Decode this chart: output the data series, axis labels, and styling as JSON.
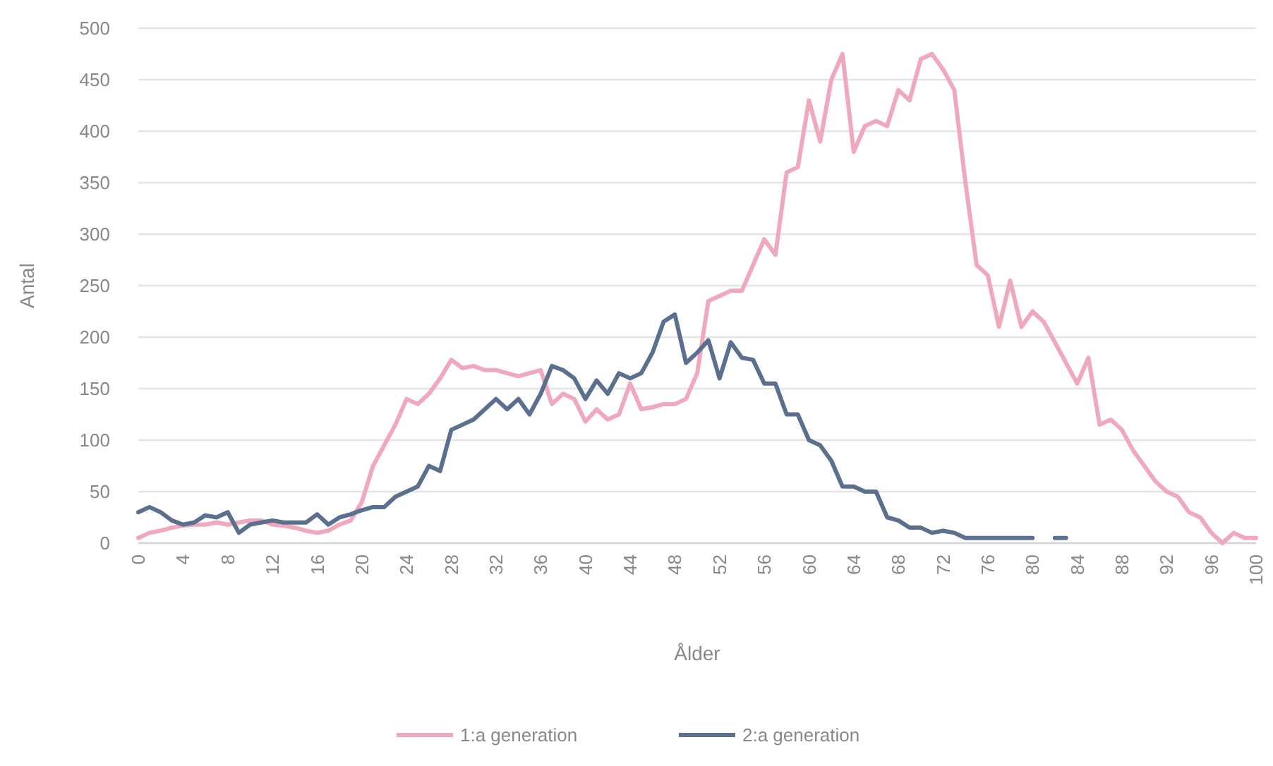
{
  "chart_data": {
    "type": "line",
    "xlabel": "Ålder",
    "ylabel": "Antal",
    "x": [
      0,
      1,
      2,
      3,
      4,
      5,
      6,
      7,
      8,
      9,
      10,
      11,
      12,
      13,
      14,
      15,
      16,
      17,
      18,
      19,
      20,
      21,
      22,
      23,
      24,
      25,
      26,
      27,
      28,
      29,
      30,
      31,
      32,
      33,
      34,
      35,
      36,
      37,
      38,
      39,
      40,
      41,
      42,
      43,
      44,
      45,
      46,
      47,
      48,
      49,
      50,
      51,
      52,
      53,
      54,
      55,
      56,
      57,
      58,
      59,
      60,
      61,
      62,
      63,
      64,
      65,
      66,
      67,
      68,
      69,
      70,
      71,
      72,
      73,
      74,
      75,
      76,
      77,
      78,
      79,
      80,
      81,
      82,
      83,
      84,
      85,
      86,
      87,
      88,
      89,
      90,
      91,
      92,
      93,
      94,
      95,
      96,
      97,
      98,
      99,
      100
    ],
    "xlim": [
      0,
      100
    ],
    "xticks": [
      0,
      4,
      8,
      12,
      16,
      20,
      24,
      28,
      32,
      36,
      40,
      44,
      48,
      52,
      56,
      60,
      64,
      68,
      72,
      76,
      80,
      84,
      88,
      92,
      96,
      100
    ],
    "ylim": [
      0,
      500
    ],
    "yticks": [
      0,
      50,
      100,
      150,
      200,
      250,
      300,
      350,
      400,
      450,
      500
    ],
    "grid": "y",
    "legend": "bottom",
    "line_style": "solid",
    "marker": "none",
    "series": [
      {
        "name": "1:a generation",
        "color": "#f0a8bc",
        "values": [
          5,
          10,
          12,
          15,
          17,
          18,
          18,
          20,
          18,
          20,
          22,
          22,
          18,
          17,
          15,
          12,
          10,
          12,
          18,
          22,
          40,
          75,
          95,
          115,
          140,
          135,
          145,
          160,
          178,
          170,
          172,
          168,
          168,
          165,
          162,
          165,
          168,
          135,
          145,
          140,
          118,
          130,
          120,
          125,
          155,
          130,
          132,
          135,
          135,
          140,
          165,
          235,
          240,
          245,
          245,
          270,
          295,
          280,
          360,
          365,
          430,
          390,
          450,
          475,
          380,
          405,
          410,
          405,
          440,
          430,
          470,
          475,
          460,
          440,
          350,
          270,
          260,
          210,
          255,
          210,
          225,
          215,
          195,
          175,
          155,
          180,
          115,
          120,
          110,
          90,
          75,
          60,
          50,
          45,
          30,
          25,
          10,
          0,
          10,
          5,
          5
        ]
      },
      {
        "name": "2:a generation",
        "color": "#5b6f8e",
        "values": [
          30,
          35,
          30,
          22,
          18,
          20,
          27,
          25,
          30,
          10,
          18,
          20,
          22,
          20,
          20,
          20,
          28,
          18,
          25,
          28,
          32,
          35,
          35,
          45,
          50,
          55,
          75,
          70,
          110,
          115,
          120,
          130,
          140,
          130,
          140,
          125,
          145,
          172,
          168,
          160,
          140,
          158,
          145,
          165,
          160,
          165,
          185,
          215,
          222,
          175,
          185,
          197,
          160,
          195,
          180,
          178,
          155,
          155,
          125,
          125,
          100,
          95,
          80,
          55,
          55,
          50,
          50,
          25,
          22,
          15,
          15,
          10,
          12,
          10,
          5,
          5,
          5,
          5,
          5,
          5,
          5,
          null,
          5,
          5,
          null,
          null,
          null,
          null,
          null,
          null,
          null,
          null,
          null,
          null,
          null,
          null,
          null,
          null,
          null,
          null,
          null
        ]
      }
    ]
  }
}
